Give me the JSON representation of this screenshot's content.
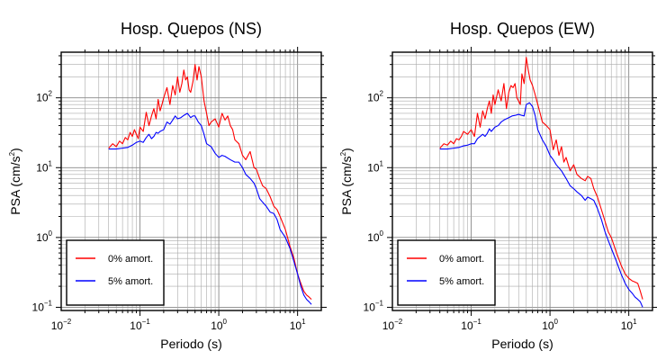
{
  "chart_data": [
    {
      "type": "line",
      "title": "Hosp. Quepos (NS)",
      "xlabel": "Periodo (s)",
      "ylabel": "PSA (cm/s²)",
      "ylabel_main": "PSA (cm/s",
      "ylabel_sup": "2",
      "ylabel_end": ")",
      "xscale": "log",
      "yscale": "log",
      "xlim": [
        0.01,
        20
      ],
      "ylim": [
        0.09,
        450
      ],
      "grid": true,
      "legend_position": "bottom-left",
      "xticks": [
        {
          "base": "10",
          "exp": "−2",
          "value": 0.01
        },
        {
          "base": "10",
          "exp": "−1",
          "value": 0.1
        },
        {
          "base": "10",
          "exp": "0",
          "value": 1
        },
        {
          "base": "10",
          "exp": "1",
          "value": 10
        }
      ],
      "yticks": [
        {
          "base": "10",
          "exp": "−1",
          "value": 0.1
        },
        {
          "base": "10",
          "exp": "0",
          "value": 1
        },
        {
          "base": "10",
          "exp": "1",
          "value": 10
        },
        {
          "base": "10",
          "exp": "2",
          "value": 100
        }
      ],
      "series": [
        {
          "name": "0% amort.",
          "color": "#ff0000",
          "x": [
            0.04,
            0.045,
            0.05,
            0.055,
            0.06,
            0.065,
            0.07,
            0.075,
            0.08,
            0.085,
            0.09,
            0.095,
            0.1,
            0.11,
            0.12,
            0.13,
            0.14,
            0.15,
            0.16,
            0.17,
            0.18,
            0.19,
            0.2,
            0.22,
            0.24,
            0.26,
            0.28,
            0.3,
            0.32,
            0.34,
            0.36,
            0.38,
            0.4,
            0.42,
            0.44,
            0.47,
            0.5,
            0.53,
            0.56,
            0.6,
            0.65,
            0.7,
            0.75,
            0.8,
            0.9,
            1.0,
            1.1,
            1.2,
            1.3,
            1.4,
            1.5,
            1.6,
            1.8,
            2.0,
            2.2,
            2.5,
            2.8,
            3.0,
            3.3,
            3.6,
            4.0,
            4.5,
            5.0,
            5.5,
            6.0,
            7.0,
            8.0,
            9.0,
            10.0,
            11.0,
            12.0,
            13.0,
            14.0,
            15.0
          ],
          "values": [
            19,
            22,
            20,
            24,
            22,
            27,
            25,
            32,
            28,
            35,
            30,
            26,
            38,
            33,
            62,
            40,
            55,
            70,
            50,
            95,
            65,
            80,
            100,
            140,
            80,
            150,
            110,
            200,
            120,
            160,
            250,
            180,
            200,
            130,
            120,
            170,
            300,
            180,
            280,
            200,
            90,
            60,
            40,
            45,
            50,
            38,
            60,
            48,
            55,
            40,
            35,
            25,
            22,
            15,
            13,
            17,
            10,
            9.5,
            7,
            5.5,
            5,
            3.8,
            2.8,
            2.5,
            2,
            1.3,
            0.75,
            0.5,
            0.3,
            0.22,
            0.17,
            0.15,
            0.14,
            0.13
          ]
        },
        {
          "name": "5% amort.",
          "color": "#0000ff",
          "x": [
            0.04,
            0.05,
            0.06,
            0.07,
            0.08,
            0.09,
            0.1,
            0.11,
            0.12,
            0.13,
            0.14,
            0.15,
            0.16,
            0.17,
            0.18,
            0.2,
            0.22,
            0.24,
            0.26,
            0.28,
            0.3,
            0.33,
            0.36,
            0.4,
            0.44,
            0.47,
            0.5,
            0.55,
            0.6,
            0.65,
            0.7,
            0.8,
            0.9,
            1.0,
            1.1,
            1.2,
            1.4,
            1.6,
            1.8,
            2.0,
            2.2,
            2.5,
            2.8,
            3.0,
            3.3,
            3.6,
            4.0,
            4.5,
            5.0,
            5.5,
            6.0,
            7.0,
            8.0,
            9.0,
            10.0,
            11.0,
            12.0,
            13.0,
            14.0,
            15.0
          ],
          "values": [
            18.5,
            18.5,
            19,
            19.5,
            21,
            23,
            24,
            23,
            27,
            30,
            26,
            28,
            32,
            31,
            33,
            35,
            45,
            42,
            48,
            55,
            50,
            52,
            56,
            60,
            52,
            55,
            55,
            45,
            40,
            30,
            22,
            20,
            16,
            14,
            15,
            14.5,
            13,
            12,
            12,
            10,
            8,
            7,
            6,
            5,
            3.6,
            3.2,
            2.8,
            2.3,
            2.2,
            1.8,
            1.3,
            1,
            0.7,
            0.45,
            0.3,
            0.2,
            0.15,
            0.13,
            0.12,
            0.11
          ]
        }
      ]
    },
    {
      "type": "line",
      "title": "Hosp. Quepos (EW)",
      "xlabel": "Periodo (s)",
      "ylabel": "PSA (cm/s²)",
      "ylabel_main": "PSA (cm/s",
      "ylabel_sup": "2",
      "ylabel_end": ")",
      "xscale": "log",
      "yscale": "log",
      "xlim": [
        0.01,
        20
      ],
      "ylim": [
        0.09,
        450
      ],
      "grid": true,
      "legend_position": "bottom-left",
      "xticks": [
        {
          "base": "10",
          "exp": "−2",
          "value": 0.01
        },
        {
          "base": "10",
          "exp": "−1",
          "value": 0.1
        },
        {
          "base": "10",
          "exp": "0",
          "value": 1
        },
        {
          "base": "10",
          "exp": "1",
          "value": 10
        }
      ],
      "yticks": [
        {
          "base": "10",
          "exp": "−1",
          "value": 0.1
        },
        {
          "base": "10",
          "exp": "0",
          "value": 1
        },
        {
          "base": "10",
          "exp": "1",
          "value": 10
        },
        {
          "base": "10",
          "exp": "2",
          "value": 100
        }
      ],
      "series": [
        {
          "name": "0% amort.",
          "color": "#ff0000",
          "x": [
            0.04,
            0.045,
            0.05,
            0.055,
            0.06,
            0.065,
            0.07,
            0.075,
            0.08,
            0.09,
            0.1,
            0.11,
            0.12,
            0.13,
            0.14,
            0.15,
            0.16,
            0.17,
            0.18,
            0.19,
            0.2,
            0.22,
            0.24,
            0.26,
            0.28,
            0.3,
            0.32,
            0.34,
            0.36,
            0.38,
            0.4,
            0.42,
            0.44,
            0.47,
            0.5,
            0.53,
            0.56,
            0.6,
            0.65,
            0.7,
            0.75,
            0.8,
            0.9,
            1.0,
            1.1,
            1.2,
            1.3,
            1.4,
            1.5,
            1.6,
            1.8,
            2.0,
            2.2,
            2.5,
            2.8,
            3.0,
            3.3,
            3.6,
            4.0,
            4.5,
            5.0,
            5.5,
            6.0,
            7.0,
            8.0,
            9.0,
            10.0,
            11.0,
            12.0,
            13.0,
            14.0,
            15.0
          ],
          "values": [
            19,
            22,
            21,
            24,
            22,
            26,
            25,
            28,
            33,
            30,
            35,
            28,
            60,
            38,
            65,
            50,
            70,
            90,
            60,
            110,
            80,
            130,
            90,
            160,
            70,
            120,
            150,
            140,
            160,
            100,
            90,
            80,
            220,
            160,
            380,
            250,
            180,
            150,
            110,
            80,
            60,
            45,
            40,
            35,
            18,
            25,
            15,
            20,
            12,
            14,
            9,
            11,
            8,
            7,
            6.5,
            7.5,
            7,
            5,
            3.8,
            2.5,
            1.7,
            1.2,
            1,
            0.6,
            0.4,
            0.3,
            0.26,
            0.24,
            0.23,
            0.22,
            0.17,
            0.13
          ]
        },
        {
          "name": "5% amort.",
          "color": "#0000ff",
          "x": [
            0.04,
            0.05,
            0.06,
            0.07,
            0.08,
            0.09,
            0.1,
            0.11,
            0.12,
            0.13,
            0.14,
            0.15,
            0.16,
            0.17,
            0.18,
            0.2,
            0.22,
            0.24,
            0.26,
            0.28,
            0.3,
            0.33,
            0.36,
            0.4,
            0.44,
            0.47,
            0.5,
            0.55,
            0.6,
            0.65,
            0.7,
            0.8,
            0.9,
            1.0,
            1.1,
            1.2,
            1.4,
            1.6,
            1.8,
            2.0,
            2.2,
            2.5,
            2.8,
            3.0,
            3.3,
            3.6,
            4.0,
            4.5,
            5.0,
            5.5,
            6.0,
            7.0,
            8.0,
            9.0,
            10.0,
            11.0,
            12.0,
            13.0,
            14.0,
            15.0
          ],
          "values": [
            18.5,
            18.5,
            19,
            19.5,
            20.5,
            21,
            22,
            22,
            26,
            28,
            30,
            28,
            31,
            36,
            33,
            38,
            40,
            45,
            48,
            50,
            52,
            55,
            56,
            58,
            56,
            55,
            80,
            85,
            75,
            55,
            35,
            25,
            20,
            15,
            13,
            11,
            9,
            7,
            5.5,
            5,
            4.5,
            4,
            3.4,
            3.8,
            3.6,
            3.4,
            2.6,
            1.8,
            1.2,
            0.9,
            0.7,
            0.45,
            0.3,
            0.22,
            0.18,
            0.16,
            0.14,
            0.13,
            0.12,
            0.1
          ]
        }
      ]
    }
  ]
}
